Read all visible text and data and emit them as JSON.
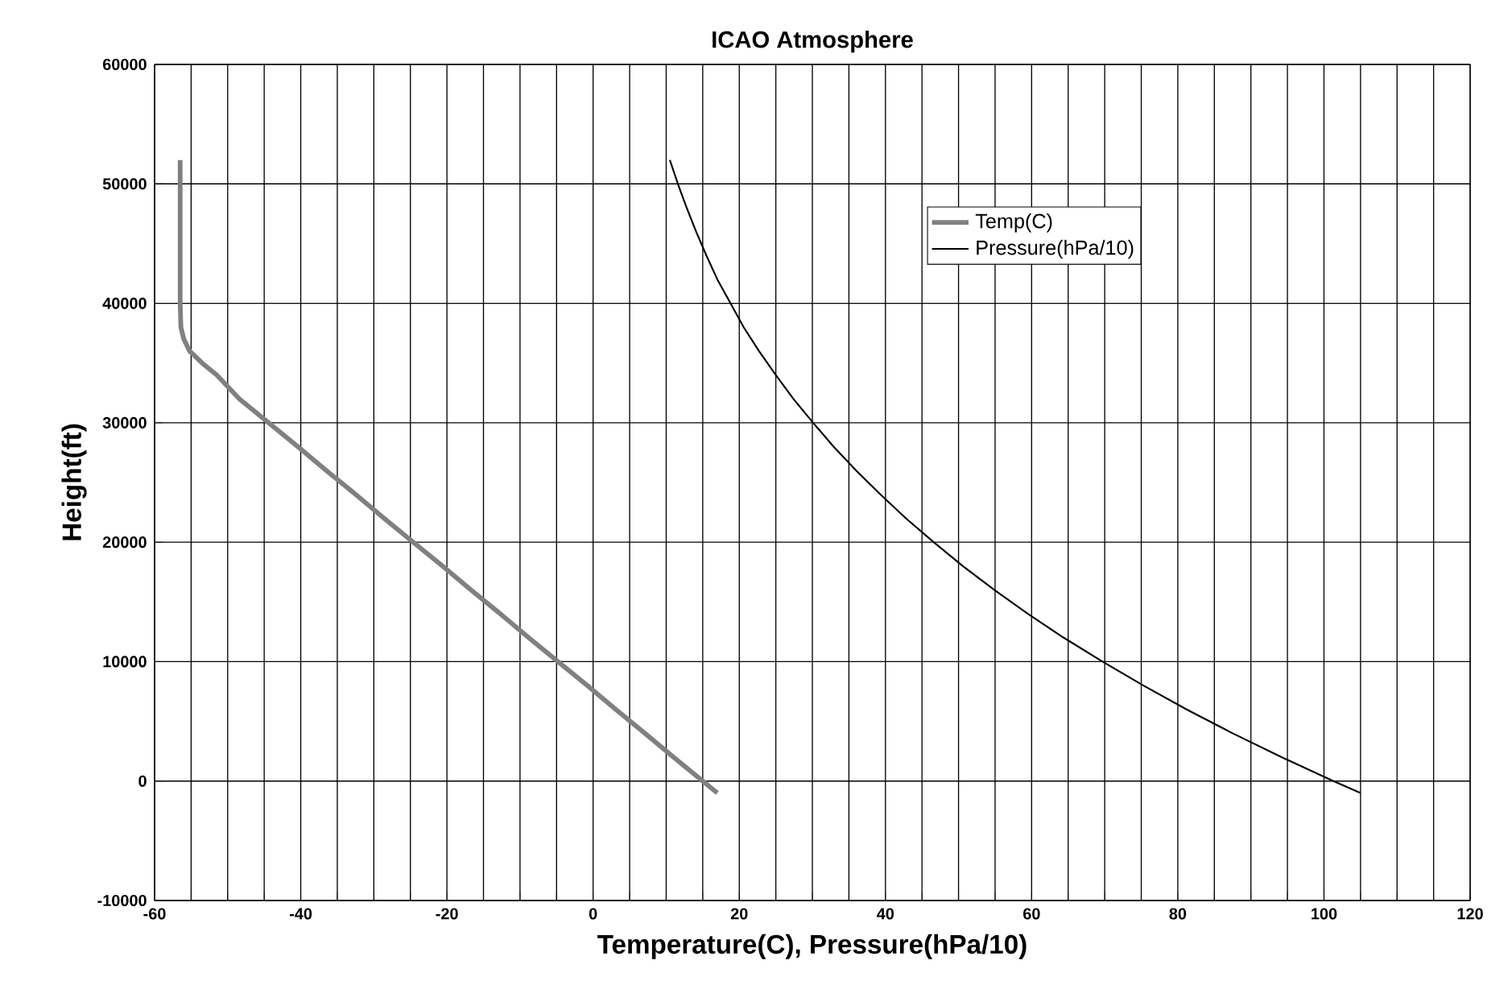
{
  "chart_data": {
    "type": "line",
    "title": "ICAO Atmosphere",
    "xlabel": "Temperature(C), Pressure(hPa/10)",
    "ylabel": "Height(ft)",
    "xlim": [
      -60,
      120
    ],
    "ylim": [
      -10000,
      60000
    ],
    "xticks": [
      -60,
      {
        "value": -55,
        "label": null
      },
      {
        "value": -50,
        "label": null
      },
      {
        "value": -45,
        "label": null
      },
      -40,
      {
        "value": -35,
        "label": null
      },
      {
        "value": -30,
        "label": null
      },
      {
        "value": -25,
        "label": null
      },
      -20,
      {
        "value": -15,
        "label": null
      },
      {
        "value": -10,
        "label": null
      },
      {
        "value": -5,
        "label": null
      },
      0,
      {
        "value": 5,
        "label": null
      },
      {
        "value": 10,
        "label": null
      },
      {
        "value": 15,
        "label": null
      },
      20,
      {
        "value": 25,
        "label": null
      },
      {
        "value": 30,
        "label": null
      },
      {
        "value": 35,
        "label": null
      },
      40,
      {
        "value": 45,
        "label": null
      },
      {
        "value": 50,
        "label": null
      },
      {
        "value": 55,
        "label": null
      },
      60,
      {
        "value": 65,
        "label": null
      },
      {
        "value": 70,
        "label": null
      },
      {
        "value": 75,
        "label": null
      },
      80,
      {
        "value": 85,
        "label": null
      },
      {
        "value": 90,
        "label": null
      },
      {
        "value": 95,
        "label": null
      },
      100,
      {
        "value": 105,
        "label": null
      },
      {
        "value": 110,
        "label": null
      },
      {
        "value": 115,
        "label": null
      },
      120
    ],
    "yticks": [
      -10000,
      0,
      10000,
      20000,
      30000,
      40000,
      50000,
      60000
    ],
    "grid": true,
    "legend": "top right",
    "series": [
      {
        "name": "Temp(C)",
        "color": "#808080",
        "x": [
          17.0,
          15.0,
          11.0,
          7.1,
          3.1,
          -0.8,
          -4.8,
          -8.8,
          -12.7,
          -16.7,
          -20.6,
          -24.6,
          -28.6,
          -32.5,
          -36.5,
          -40.4,
          -44.4,
          -48.4,
          -51.5,
          -53.5,
          -55.2,
          -56.0,
          -56.4,
          -56.5,
          -56.5,
          -56.5,
          -56.5,
          -56.5,
          -56.5,
          -56.5
        ],
        "values": [
          -1000,
          0,
          2000,
          4000,
          6000,
          8000,
          10000,
          12000,
          14000,
          16000,
          18000,
          20000,
          22000,
          24000,
          26000,
          28000,
          30000,
          32000,
          34000,
          35000,
          36000,
          37000,
          38000,
          40000,
          42000,
          44000,
          46000,
          48000,
          50000,
          52000
        ]
      },
      {
        "name": "Pressure(hPa/10)",
        "color": "#000000",
        "x": [
          105.0,
          101.3,
          94.2,
          87.5,
          81.2,
          75.3,
          69.7,
          64.4,
          59.5,
          54.9,
          50.6,
          46.6,
          42.8,
          39.3,
          36.0,
          32.9,
          30.1,
          27.4,
          25.0,
          22.7,
          20.6,
          18.8,
          17.0,
          15.5,
          14.1,
          12.8,
          11.6,
          10.5
        ],
        "values": [
          -1000,
          0,
          2000,
          4000,
          6000,
          8000,
          10000,
          12000,
          14000,
          16000,
          18000,
          20000,
          22000,
          24000,
          26000,
          28000,
          30000,
          32000,
          34000,
          36000,
          38000,
          40000,
          42000,
          44000,
          46000,
          48000,
          50000,
          52000
        ]
      }
    ]
  }
}
